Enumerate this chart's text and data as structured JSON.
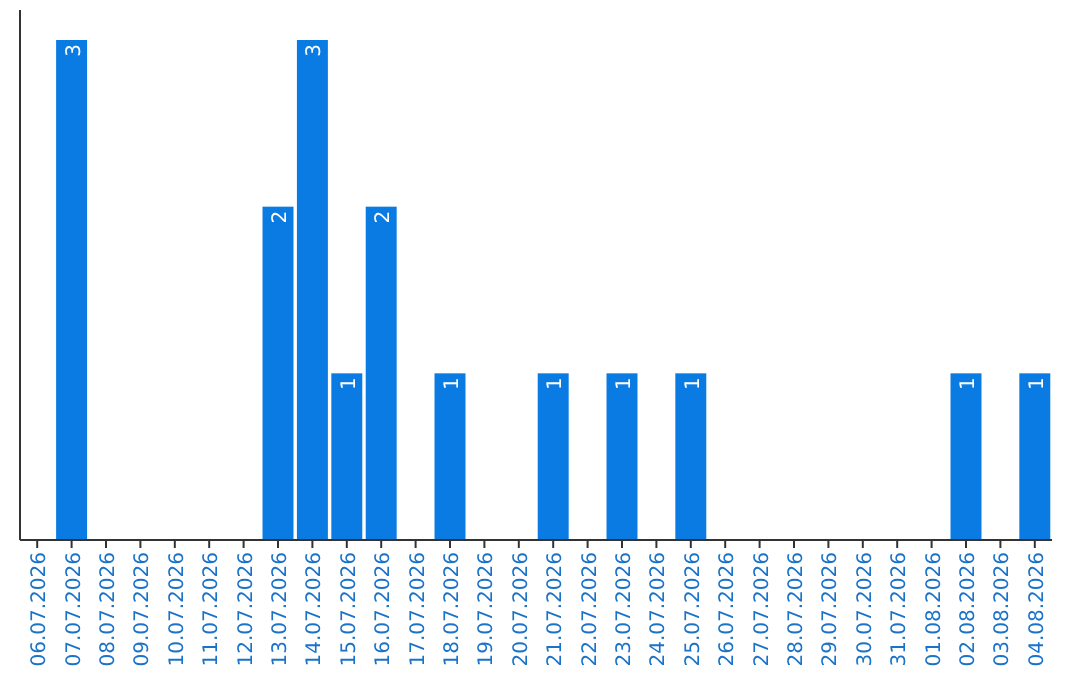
{
  "chart_data": {
    "type": "bar",
    "categories": [
      "06.07.2026",
      "07.07.2026",
      "08.07.2026",
      "09.07.2026",
      "10.07.2026",
      "11.07.2026",
      "12.07.2026",
      "13.07.2026",
      "14.07.2026",
      "15.07.2026",
      "16.07.2026",
      "17.07.2026",
      "18.07.2026",
      "19.07.2026",
      "20.07.2026",
      "21.07.2026",
      "22.07.2026",
      "23.07.2026",
      "24.07.2026",
      "25.07.2026",
      "26.07.2026",
      "27.07.2026",
      "28.07.2026",
      "29.07.2026",
      "30.07.2026",
      "31.07.2026",
      "01.08.2026",
      "02.08.2026",
      "03.08.2026",
      "04.08.2026"
    ],
    "values": [
      0,
      3,
      0,
      0,
      0,
      0,
      0,
      2,
      3,
      1,
      2,
      0,
      1,
      0,
      0,
      1,
      0,
      1,
      0,
      1,
      0,
      0,
      0,
      0,
      0,
      0,
      0,
      1,
      0,
      1
    ],
    "value_labels": [
      null,
      "3",
      null,
      null,
      null,
      null,
      null,
      "2",
      "3",
      "1",
      "2",
      null,
      "1",
      null,
      null,
      "1",
      null,
      "1",
      null,
      "1",
      null,
      null,
      null,
      null,
      null,
      null,
      null,
      "1",
      null,
      "1"
    ],
    "color": "#0a7be2"
  }
}
